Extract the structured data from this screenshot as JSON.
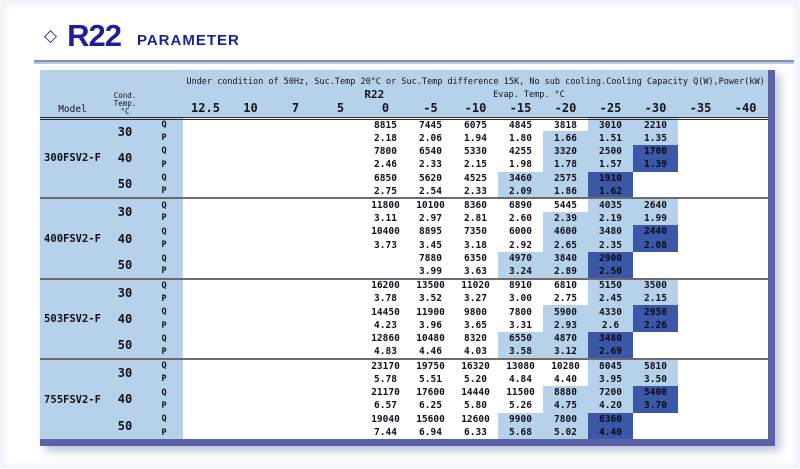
{
  "page": {
    "title_icon": "◇",
    "title_main": "R22",
    "title_sub": "PARAMETER"
  },
  "colors": {
    "band_light_blue": "#b5d2ea",
    "highlight_light_blue": "#b5d2ea",
    "highlight_dark_blue": "#3b57a8",
    "title_navy": "#1d1f96",
    "table_border_purple": "#5a63a8"
  },
  "table": {
    "condition_line": "Under condition of 50Hz, Suc.Temp 20°C or Suc.Temp difference 15K, No sub cooling.Cooling Capacity Q(W),Power(kW)",
    "refrigerant_label": "R22",
    "evap_label": "Evap. Temp. °C",
    "model_header": "Model",
    "cond_header_lines": [
      "Cond.",
      "Temp.",
      "°C"
    ],
    "columns": [
      "12.5",
      "10",
      "7",
      "5",
      "0",
      "-5",
      "-10",
      "-15",
      "-20",
      "-25",
      "-30",
      "-35",
      "-40"
    ],
    "models": [
      {
        "name": "300FSV2-F",
        "groups": [
          {
            "cond": "30",
            "rows": [
              {
                "label": "Q",
                "start": 4,
                "values": [
                  "8815",
                  "7445",
                  "6075",
                  "4845",
                  "3818",
                  "3010",
                  "2210"
                ],
                "light": [
                  9,
                  10
                ],
                "dark": []
              },
              {
                "label": "P",
                "start": 4,
                "values": [
                  "2.18",
                  "2.06",
                  "1.94",
                  "1.80",
                  "1.66",
                  "1.51",
                  "1.35"
                ],
                "light": [
                  8,
                  9,
                  10
                ],
                "dark": []
              }
            ]
          },
          {
            "cond": "40",
            "rows": [
              {
                "label": "Q",
                "start": 4,
                "values": [
                  "7800",
                  "6540",
                  "5330",
                  "4255",
                  "3320",
                  "2500",
                  "1700"
                ],
                "light": [
                  8,
                  9
                ],
                "dark": [
                  10
                ]
              },
              {
                "label": "P",
                "start": 4,
                "values": [
                  "2.46",
                  "2.33",
                  "2.15",
                  "1.98",
                  "1.78",
                  "1.57",
                  "1.39"
                ],
                "light": [
                  8,
                  9
                ],
                "dark": [
                  10
                ]
              }
            ]
          },
          {
            "cond": "50",
            "rows": [
              {
                "label": "Q",
                "start": 4,
                "values": [
                  "6850",
                  "5620",
                  "4525",
                  "3460",
                  "2575",
                  "1910"
                ],
                "light": [
                  7,
                  8
                ],
                "dark": [
                  9
                ]
              },
              {
                "label": "P",
                "start": 4,
                "values": [
                  "2.75",
                  "2.54",
                  "2.33",
                  "2.09",
                  "1.86",
                  "1.62"
                ],
                "light": [
                  7,
                  8
                ],
                "dark": [
                  9
                ]
              }
            ]
          }
        ]
      },
      {
        "name": "400FSV2-F",
        "groups": [
          {
            "cond": "30",
            "rows": [
              {
                "label": "Q",
                "start": 4,
                "values": [
                  "11800",
                  "10100",
                  "8360",
                  "6890",
                  "5445",
                  "4035",
                  "2640"
                ],
                "light": [
                  9,
                  10
                ],
                "dark": []
              },
              {
                "label": "P",
                "start": 4,
                "values": [
                  "3.11",
                  "2.97",
                  "2.81",
                  "2.60",
                  "2.39",
                  "2.19",
                  "1.99"
                ],
                "light": [
                  8,
                  9,
                  10
                ],
                "dark": []
              }
            ]
          },
          {
            "cond": "40",
            "rows": [
              {
                "label": "Q",
                "start": 4,
                "values": [
                  "10400",
                  "8895",
                  "7350",
                  "6000",
                  "4600",
                  "3480",
                  "2440"
                ],
                "light": [
                  8,
                  9
                ],
                "dark": [
                  10
                ]
              },
              {
                "label": "P",
                "start": 4,
                "values": [
                  "3.73",
                  "3.45",
                  "3.18",
                  "2.92",
                  "2.65",
                  "2.35",
                  "2.08"
                ],
                "light": [
                  8,
                  9
                ],
                "dark": [
                  10
                ]
              }
            ]
          },
          {
            "cond": "50",
            "rows": [
              {
                "label": "Q",
                "start": 5,
                "values": [
                  "7880",
                  "6350",
                  "4970",
                  "3840",
                  "2900"
                ],
                "light": [
                  7,
                  8
                ],
                "dark": [
                  9
                ]
              },
              {
                "label": "P",
                "start": 5,
                "values": [
                  "3.99",
                  "3.63",
                  "3.24",
                  "2.89",
                  "2.50"
                ],
                "light": [
                  7,
                  8
                ],
                "dark": [
                  9
                ]
              }
            ]
          }
        ]
      },
      {
        "name": "503FSV2-F",
        "groups": [
          {
            "cond": "30",
            "rows": [
              {
                "label": "Q",
                "start": 4,
                "values": [
                  "16200",
                  "13500",
                  "11020",
                  "8910",
                  "6810",
                  "5150",
                  "3500"
                ],
                "light": [
                  9,
                  10
                ],
                "dark": []
              },
              {
                "label": "P",
                "start": 4,
                "values": [
                  "3.78",
                  "3.52",
                  "3.27",
                  "3.00",
                  "2.75",
                  "2.45",
                  "2.15"
                ],
                "light": [
                  9,
                  10
                ],
                "dark": []
              }
            ]
          },
          {
            "cond": "40",
            "rows": [
              {
                "label": "Q",
                "start": 4,
                "values": [
                  "14450",
                  "11900",
                  "9800",
                  "7800",
                  "5900",
                  "4330",
                  "2950"
                ],
                "light": [
                  8,
                  9
                ],
                "dark": [
                  10
                ]
              },
              {
                "label": "P",
                "start": 4,
                "values": [
                  "4.23",
                  "3.96",
                  "3.65",
                  "3.31",
                  "2.93",
                  "2.6",
                  "2.26"
                ],
                "light": [
                  8,
                  9
                ],
                "dark": [
                  10
                ]
              }
            ]
          },
          {
            "cond": "50",
            "rows": [
              {
                "label": "Q",
                "start": 4,
                "values": [
                  "12860",
                  "10480",
                  "8320",
                  "6550",
                  "4870",
                  "3480"
                ],
                "light": [
                  7,
                  8
                ],
                "dark": [
                  9
                ]
              },
              {
                "label": "P",
                "start": 4,
                "values": [
                  "4.83",
                  "4.46",
                  "4.03",
                  "3.58",
                  "3.12",
                  "2.69"
                ],
                "light": [
                  7,
                  8
                ],
                "dark": [
                  9
                ]
              }
            ]
          }
        ]
      },
      {
        "name": "755FSV2-F",
        "groups": [
          {
            "cond": "30",
            "rows": [
              {
                "label": "Q",
                "start": 4,
                "values": [
                  "23170",
                  "19750",
                  "16320",
                  "13080",
                  "10280",
                  "8045",
                  "5810"
                ],
                "light": [
                  9,
                  10
                ],
                "dark": []
              },
              {
                "label": "P",
                "start": 4,
                "values": [
                  "5.78",
                  "5.51",
                  "5.20",
                  "4.84",
                  "4.40",
                  "3.95",
                  "3.50"
                ],
                "light": [
                  9,
                  10
                ],
                "dark": []
              }
            ]
          },
          {
            "cond": "40",
            "rows": [
              {
                "label": "Q",
                "start": 4,
                "values": [
                  "21170",
                  "17600",
                  "14440",
                  "11500",
                  "8880",
                  "7200",
                  "5400"
                ],
                "light": [
                  8,
                  9
                ],
                "dark": [
                  10
                ]
              },
              {
                "label": "P",
                "start": 4,
                "values": [
                  "6.57",
                  "6.25",
                  "5.80",
                  "5.26",
                  "4.75",
                  "4.20",
                  "3.70"
                ],
                "light": [
                  8,
                  9
                ],
                "dark": [
                  10
                ]
              }
            ]
          },
          {
            "cond": "50",
            "rows": [
              {
                "label": "Q",
                "start": 4,
                "values": [
                  "19040",
                  "15600",
                  "12600",
                  "9900",
                  "7800",
                  "6360"
                ],
                "light": [
                  7,
                  8
                ],
                "dark": [
                  9
                ]
              },
              {
                "label": "P",
                "start": 4,
                "values": [
                  "7.44",
                  "6.94",
                  "6.33",
                  "5.68",
                  "5.02",
                  "4.40"
                ],
                "light": [
                  7,
                  8
                ],
                "dark": [
                  9
                ]
              }
            ]
          }
        ]
      }
    ]
  }
}
